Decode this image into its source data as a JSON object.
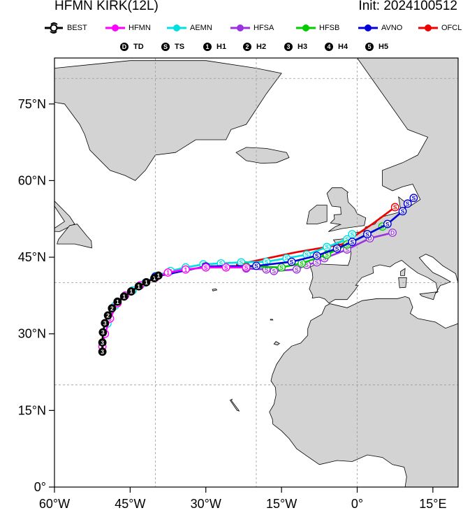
{
  "header": {
    "title_left": "HFMN KIRK(12L)",
    "title_right": "Init: 2024100512"
  },
  "legend": {
    "models": [
      {
        "name": "BEST",
        "color": "#000000",
        "icon": "hurricane-symbol-icon"
      },
      {
        "name": "HFMN",
        "color": "#ff00ff"
      },
      {
        "name": "AEMN",
        "color": "#00e0e0"
      },
      {
        "name": "HFSA",
        "color": "#9933dd"
      },
      {
        "name": "HFSB",
        "color": "#00cc00"
      },
      {
        "name": "AVNO",
        "color": "#0000dd"
      },
      {
        "name": "OFCL",
        "color": "#ee0000"
      }
    ],
    "categories": [
      {
        "glyph": "D",
        "label": "TD"
      },
      {
        "glyph": "S",
        "label": "TS"
      },
      {
        "glyph": "1",
        "label": "H1"
      },
      {
        "glyph": "2",
        "label": "H2"
      },
      {
        "glyph": "3",
        "label": "H3"
      },
      {
        "glyph": "4",
        "label": "H4"
      },
      {
        "glyph": "5",
        "label": "H5"
      }
    ]
  },
  "map": {
    "lon_range": [
      -60,
      20
    ],
    "lat_range": [
      0,
      84
    ],
    "lat_ticks": [
      {
        "value": 0,
        "label": "0°"
      },
      {
        "value": 15,
        "label": "15°N"
      },
      {
        "value": 30,
        "label": "30°N"
      },
      {
        "value": 45,
        "label": "45°N"
      },
      {
        "value": 60,
        "label": "60°N"
      },
      {
        "value": 75,
        "label": "75°N"
      }
    ],
    "lon_ticks": [
      {
        "value": -60,
        "label": "60°W"
      },
      {
        "value": -45,
        "label": "45°W"
      },
      {
        "value": -30,
        "label": "30°W"
      },
      {
        "value": -15,
        "label": "15°W"
      },
      {
        "value": 0,
        "label": "0°"
      },
      {
        "value": 15,
        "label": "15°E"
      }
    ],
    "gridlines": {
      "lon": [
        -40,
        -20,
        0
      ],
      "lat": [
        20,
        40,
        80
      ]
    },
    "land_color": "#d3d3d3",
    "ocean_color": "#ffffff"
  },
  "tracks": {
    "BEST": {
      "color": "#000000",
      "points": [
        [
          -50.5,
          26.5,
          "3"
        ],
        [
          -50.5,
          28.3,
          "3"
        ],
        [
          -50.4,
          30.3,
          "3"
        ],
        [
          -50.0,
          32.1,
          "3"
        ],
        [
          -49.4,
          33.6,
          "2"
        ],
        [
          -48.6,
          35.0,
          "2"
        ],
        [
          -47.5,
          36.3,
          "1"
        ],
        [
          -46.2,
          37.3,
          "1"
        ],
        [
          -44.8,
          38.3,
          "1"
        ],
        [
          -43.3,
          39.3,
          "1"
        ],
        [
          -41.8,
          40.1,
          "1"
        ],
        [
          -40.2,
          40.9,
          "1"
        ],
        [
          -39.4,
          41.4,
          "1"
        ]
      ]
    },
    "HFMN": {
      "color": "#ff00ff",
      "points": [
        [
          -50.5,
          27.5,
          "3"
        ],
        [
          -50.0,
          30.0,
          "3"
        ],
        [
          -49.0,
          33.0,
          "3"
        ],
        [
          -47.5,
          36.0,
          "2"
        ],
        [
          -46.0,
          37.5,
          "2"
        ],
        [
          -43.0,
          39.5,
          "1"
        ],
        [
          -40.0,
          41.0,
          "1"
        ],
        [
          -37.5,
          42.0,
          "1"
        ],
        [
          -34.0,
          42.6,
          "1"
        ],
        [
          -30.0,
          43.0,
          "S"
        ],
        [
          -26.0,
          43.0,
          "S"
        ],
        [
          -22.0,
          43.0,
          "S"
        ]
      ]
    },
    "AEMN": {
      "color": "#00e0e0",
      "points": [
        [
          -49.5,
          32.0,
          "3"
        ],
        [
          -48.0,
          35.5,
          "2"
        ],
        [
          -46.0,
          37.5,
          "1"
        ],
        [
          -44.5,
          38.5,
          "1"
        ],
        [
          -42.0,
          40.0,
          "1"
        ],
        [
          -40.0,
          41.3,
          "1"
        ],
        [
          -37.0,
          42.3,
          "S"
        ],
        [
          -34.0,
          43.0,
          "S"
        ],
        [
          -30.5,
          43.6,
          "S"
        ],
        [
          -27.0,
          43.8,
          "S"
        ],
        [
          -23.0,
          44.0,
          "S"
        ],
        [
          -18.0,
          44.1,
          "S"
        ],
        [
          -14.0,
          44.8,
          "S"
        ],
        [
          -10.0,
          45.5,
          "S"
        ],
        [
          -6.0,
          47.0,
          "S"
        ],
        [
          -2.0,
          48.5,
          "S"
        ],
        [
          -1.0,
          49.5,
          "S"
        ]
      ]
    },
    "HFSA": {
      "color": "#9933dd",
      "points": [
        [
          -22.0,
          42.8,
          "S"
        ],
        [
          -18.0,
          42.6,
          "S"
        ],
        [
          -16.5,
          42.3,
          "S"
        ],
        [
          -12.0,
          42.6,
          "S"
        ],
        [
          -10.0,
          43.5,
          "S"
        ],
        [
          -8.0,
          44.0,
          "S"
        ],
        [
          -6.5,
          44.8,
          "S"
        ],
        [
          -2.0,
          46.5,
          "S"
        ],
        [
          2.5,
          48.7,
          "D"
        ],
        [
          7.0,
          49.8,
          "D"
        ]
      ]
    },
    "HFSB": {
      "color": "#00cc00",
      "points": [
        [
          -22.0,
          43.2,
          "S"
        ],
        [
          -15.0,
          43.0,
          "S"
        ],
        [
          -11.0,
          43.8,
          "S"
        ],
        [
          -6.0,
          45.5,
          "S"
        ],
        [
          -2.0,
          47.5,
          "S"
        ],
        [
          2.0,
          49.5,
          "S"
        ],
        [
          5.0,
          51.0,
          "D"
        ]
      ]
    },
    "AVNO": {
      "color": "#0000dd",
      "points": [
        [
          -40.0,
          41.2,
          "S"
        ],
        [
          -30.0,
          43.2,
          "S"
        ],
        [
          -20.0,
          43.3,
          "S"
        ],
        [
          -13.0,
          44.1,
          "S"
        ],
        [
          -8.0,
          45.3,
          "S"
        ],
        [
          -4.0,
          46.7,
          "S"
        ],
        [
          -1.0,
          48.0,
          "S"
        ],
        [
          2.0,
          49.5,
          "S"
        ],
        [
          6.0,
          51.5,
          "S"
        ],
        [
          9.0,
          54.0,
          "S"
        ],
        [
          10.0,
          55.5,
          "S"
        ],
        [
          11.2,
          56.6,
          "S"
        ]
      ]
    },
    "OFCL": {
      "color": "#ee0000",
      "points": [
        [
          -24.0,
          43.5,
          ""
        ],
        [
          -12.0,
          46.0,
          ""
        ],
        [
          -3.0,
          47.5,
          ""
        ],
        [
          3.0,
          51.5,
          ""
        ],
        [
          7.5,
          54.8,
          "S"
        ]
      ]
    }
  }
}
